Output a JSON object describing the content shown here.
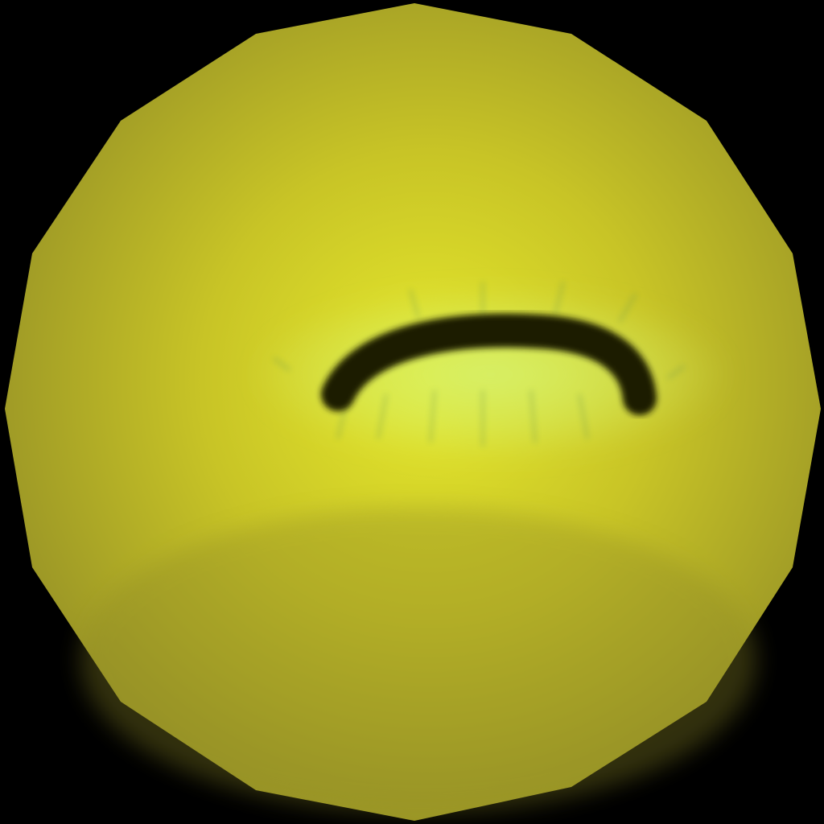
{
  "colors": {
    "background": "#000000",
    "ball_center": "#e6e92c",
    "ball_mid": "#c8c426",
    "ball_edge": "#8f8a26",
    "eye_glow": "#d6f06a",
    "eye_lashes": "#6f9a4a",
    "eye_stroke": "#1c1a05"
  },
  "icons": {
    "ball": "polygonal-yellow-sphere",
    "eye": "closed-eye-stroke"
  }
}
